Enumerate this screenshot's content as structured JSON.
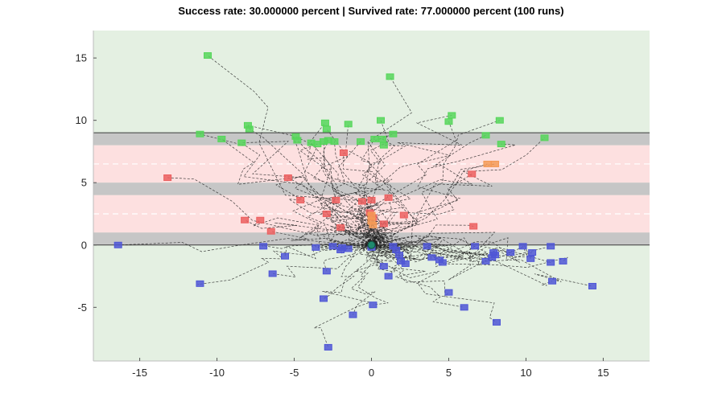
{
  "chart_data": {
    "type": "scatter",
    "title": "Success rate: 30.000000 percent | Survived rate: 77.000000 percent (100 runs)",
    "xlabel": "",
    "ylabel": "",
    "xlim": [
      -18,
      18
    ],
    "ylim": [
      -9.3,
      17.2
    ],
    "x_ticks": [
      -15,
      -10,
      -5,
      0,
      5,
      10,
      15
    ],
    "y_ticks": [
      -5,
      0,
      5,
      10,
      15
    ],
    "grid": false,
    "background_color": "#e4f0e2",
    "bands": [
      {
        "name": "barrier",
        "y_from": 8.0,
        "y_to": 9.0,
        "color": "#c6c6c6"
      },
      {
        "name": "lane",
        "y_from": 5.0,
        "y_to": 8.0,
        "color": "#fde0e0"
      },
      {
        "name": "barrier",
        "y_from": 4.0,
        "y_to": 5.0,
        "color": "#c6c6c6"
      },
      {
        "name": "lane",
        "y_from": 1.0,
        "y_to": 4.0,
        "color": "#fde0e0"
      },
      {
        "name": "barrier",
        "y_from": 0.0,
        "y_to": 1.0,
        "color": "#c6c6c6"
      }
    ],
    "boundary_lines": [
      {
        "y": 9.0,
        "color": "#3a3a3a",
        "style": "solid"
      },
      {
        "y": 0.0,
        "color": "#3a3a3a",
        "style": "solid"
      },
      {
        "y": 6.5,
        "color": "#ffffff",
        "style": "dashed"
      },
      {
        "y": 2.5,
        "color": "#ffffff",
        "style": "dashed"
      }
    ],
    "start": {
      "x": 0.0,
      "y": 0.0,
      "color": "#1f8a6e"
    },
    "trajectory_color": "#222222",
    "series": [
      {
        "outcome": "success",
        "color": "#56d65a",
        "points": [
          [
            -10.6,
            15.2
          ],
          [
            1.2,
            13.5
          ],
          [
            5.2,
            10.4
          ],
          [
            8.3,
            10.0
          ],
          [
            -3.0,
            9.8
          ],
          [
            -1.5,
            9.7
          ],
          [
            0.6,
            10.0
          ],
          [
            -8.0,
            9.6
          ],
          [
            -7.9,
            9.3
          ],
          [
            -11.1,
            8.9
          ],
          [
            -9.7,
            8.5
          ],
          [
            -8.4,
            8.2
          ],
          [
            -4.9,
            8.7
          ],
          [
            -4.8,
            8.4
          ],
          [
            -2.9,
            9.3
          ],
          [
            -3.9,
            8.2
          ],
          [
            -2.4,
            8.3
          ],
          [
            -3.5,
            8.1
          ],
          [
            -0.7,
            8.3
          ],
          [
            0.2,
            8.5
          ],
          [
            0.7,
            8.5
          ],
          [
            0.8,
            8.0
          ],
          [
            1.4,
            8.9
          ],
          [
            5.0,
            9.9
          ],
          [
            7.4,
            8.8
          ],
          [
            8.4,
            8.1
          ],
          [
            11.2,
            8.6
          ],
          [
            -2.8,
            8.4
          ],
          [
            -3.1,
            8.3
          ]
        ]
      },
      {
        "outcome": "survived",
        "color": "#4f56d6",
        "points": [
          [
            -16.4,
            0.0
          ],
          [
            -11.1,
            -3.1
          ],
          [
            -7.0,
            -0.1
          ],
          [
            -6.4,
            -2.3
          ],
          [
            -5.6,
            -0.9
          ],
          [
            -3.6,
            -0.2
          ],
          [
            -2.9,
            -2.1
          ],
          [
            -3.1,
            -4.3
          ],
          [
            -2.8,
            -8.2
          ],
          [
            -2.5,
            -0.1
          ],
          [
            -1.9,
            -0.2
          ],
          [
            -2.0,
            -0.4
          ],
          [
            -1.5,
            -0.3
          ],
          [
            -1.2,
            -5.6
          ],
          [
            0.0,
            -0.2
          ],
          [
            0.1,
            -4.8
          ],
          [
            0.8,
            -1.7
          ],
          [
            1.1,
            -2.5
          ],
          [
            1.4,
            -0.1
          ],
          [
            1.6,
            -0.4
          ],
          [
            1.8,
            -0.8
          ],
          [
            1.9,
            -1.3
          ],
          [
            2.2,
            -1.5
          ],
          [
            3.6,
            -0.1
          ],
          [
            3.9,
            -1.0
          ],
          [
            4.4,
            -1.2
          ],
          [
            4.6,
            -1.4
          ],
          [
            5.0,
            -3.8
          ],
          [
            6.0,
            -5.0
          ],
          [
            6.7,
            -0.1
          ],
          [
            7.4,
            -1.3
          ],
          [
            7.8,
            -1.0
          ],
          [
            7.9,
            -0.6
          ],
          [
            8.0,
            -0.8
          ],
          [
            8.1,
            -6.2
          ],
          [
            9.0,
            -0.6
          ],
          [
            9.8,
            -0.1
          ],
          [
            10.3,
            -1.1
          ],
          [
            10.4,
            -0.6
          ],
          [
            11.6,
            -0.1
          ],
          [
            11.6,
            -1.4
          ],
          [
            11.7,
            -2.9
          ],
          [
            12.4,
            -1.3
          ],
          [
            14.3,
            -3.3
          ]
        ]
      },
      {
        "outcome": "crashed",
        "color": "#ec5f5f",
        "points": [
          [
            -13.2,
            5.4
          ],
          [
            -5.4,
            5.4
          ],
          [
            -4.6,
            3.6
          ],
          [
            -2.9,
            2.5
          ],
          [
            -2.3,
            3.6
          ],
          [
            -2.0,
            1.4
          ],
          [
            -1.8,
            7.4
          ],
          [
            -8.2,
            2.0
          ],
          [
            -7.2,
            2.0
          ],
          [
            -6.5,
            1.1
          ],
          [
            -0.6,
            3.5
          ],
          [
            0.0,
            3.6
          ],
          [
            -0.1,
            2.6
          ],
          [
            0.1,
            2.2
          ],
          [
            0.8,
            1.7
          ],
          [
            1.1,
            3.8
          ],
          [
            2.1,
            2.4
          ],
          [
            6.5,
            5.7
          ],
          [
            6.6,
            1.5
          ]
        ]
      },
      {
        "outcome": "other",
        "color": "#f49a56",
        "points": [
          [
            7.5,
            6.5
          ],
          [
            8.0,
            6.5
          ],
          [
            0.0,
            2.4
          ],
          [
            0.0,
            1.9
          ],
          [
            0.1,
            1.6
          ]
        ]
      }
    ]
  }
}
